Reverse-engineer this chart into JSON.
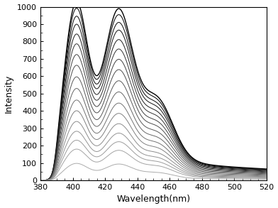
{
  "x_min": 380,
  "x_max": 520,
  "y_min": 0,
  "y_max": 1000,
  "xlabel": "Wavelength(nm)",
  "ylabel": "Intensity",
  "x_ticks": [
    380,
    400,
    420,
    440,
    460,
    480,
    500,
    520
  ],
  "y_ticks": [
    0,
    100,
    200,
    300,
    400,
    500,
    600,
    700,
    800,
    900,
    1000
  ],
  "n_curves": 17,
  "scale_factors": [
    1.0,
    0.965,
    0.92,
    0.875,
    0.82,
    0.765,
    0.705,
    0.645,
    0.58,
    0.515,
    0.45,
    0.39,
    0.33,
    0.275,
    0.225,
    0.175,
    0.095
  ],
  "peak1_max": 950,
  "background_color": "#ffffff"
}
